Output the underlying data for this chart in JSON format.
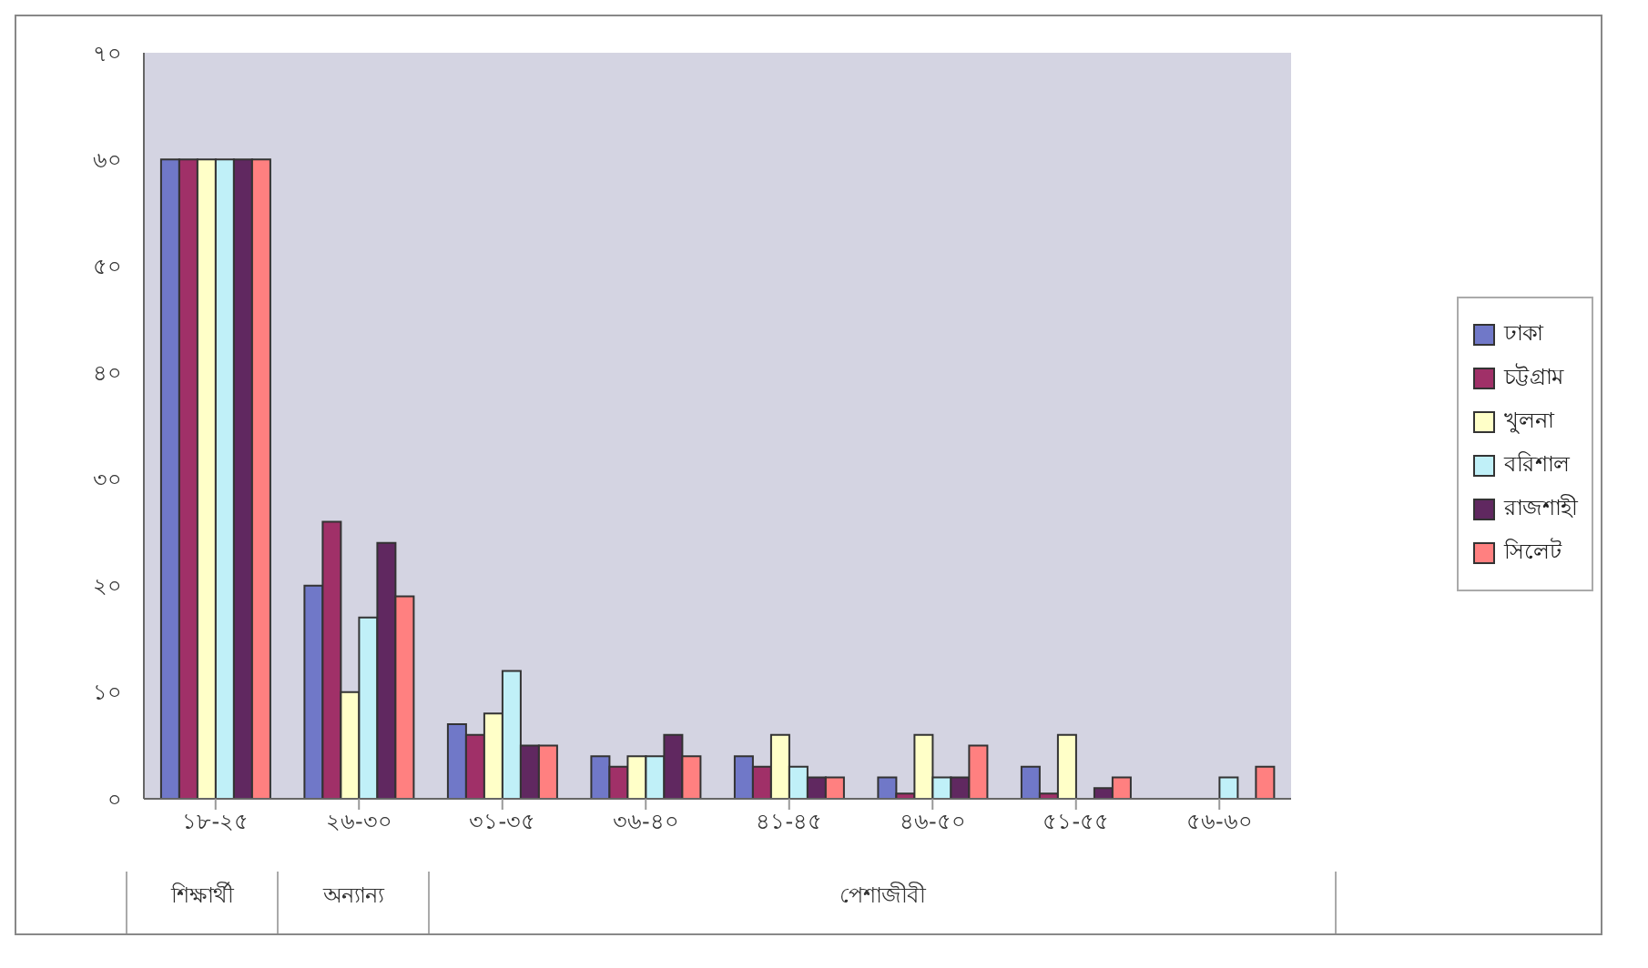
{
  "chart_data": {
    "type": "bar",
    "categories": [
      "১৮-২৫",
      "২৬-৩০",
      "৩১-৩৫",
      "৩৬-৪০",
      "৪১-৪৫",
      "৪৬-৫০",
      "৫১-৫৫",
      "৫৬-৬০"
    ],
    "series": [
      {
        "name": "ঢাকা",
        "color": "#7078c8",
        "values": [
          60,
          20,
          7,
          4,
          4,
          2,
          3,
          0
        ]
      },
      {
        "name": "চট্টগ্রাম",
        "color": "#a03068",
        "values": [
          60,
          26,
          6,
          3,
          3,
          0.5,
          0.5,
          0
        ]
      },
      {
        "name": "খুলনা",
        "color": "#ffffc8",
        "values": [
          60,
          10,
          8,
          4,
          6,
          6,
          6,
          0
        ]
      },
      {
        "name": "বরিশাল",
        "color": "#c0f0f8",
        "values": [
          60,
          17,
          12,
          4,
          3,
          2,
          0,
          2
        ]
      },
      {
        "name": "রাজশাহী",
        "color": "#602860",
        "values": [
          60,
          24,
          5,
          6,
          2,
          2,
          1,
          0
        ]
      },
      {
        "name": "সিলেট",
        "color": "#ff8080",
        "values": [
          60,
          19,
          5,
          4,
          2,
          5,
          2,
          3
        ]
      }
    ],
    "ylim": [
      0,
      70
    ],
    "yticks": [
      {
        "value": 0,
        "label": "০"
      },
      {
        "value": 10,
        "label": "১০"
      },
      {
        "value": 20,
        "label": "২০"
      },
      {
        "value": 30,
        "label": "৩০"
      },
      {
        "value": 40,
        "label": "৪০"
      },
      {
        "value": 50,
        "label": "৫০"
      },
      {
        "value": 60,
        "label": "৬০"
      },
      {
        "value": 70,
        "label": "৭০"
      }
    ],
    "annotations": [
      "শিক্ষার্থী",
      "অন্যান্য",
      "পেশাজীবী"
    ],
    "legend": "right"
  }
}
